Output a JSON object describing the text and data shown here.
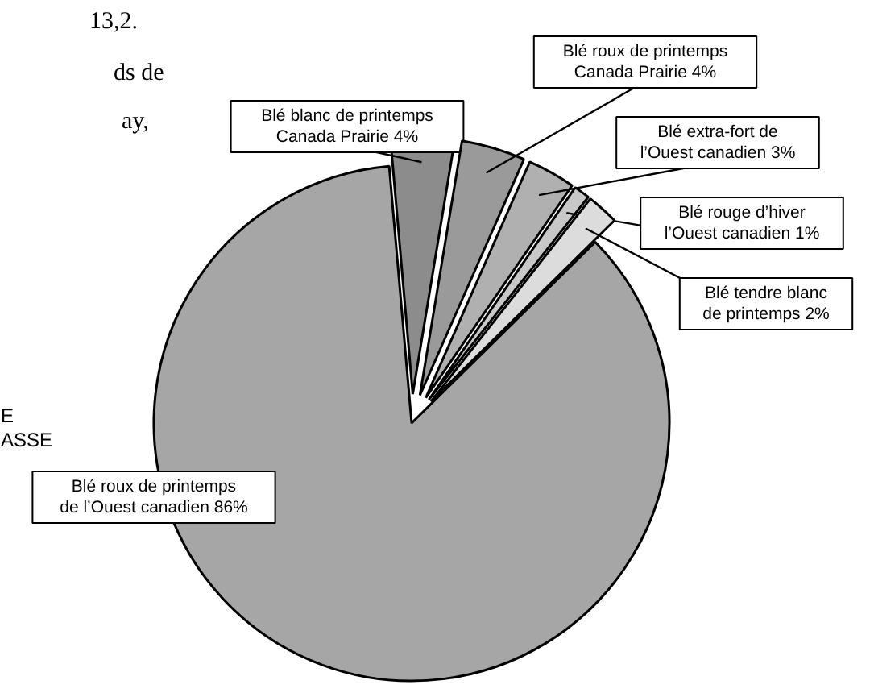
{
  "chart_data": {
    "type": "pie",
    "categories": [
      "Blé blanc de printemps\nCanada Prairie 4%",
      "Blé roux de printemps\nCanada Prairie 4%",
      "Blé extra-fort de\nl’Ouest canadien 3%",
      "Blé rouge d’hiver\nl’Ouest canadien 1%",
      "Blé tendre blanc\nde printemps 2%",
      "Blé roux de printemps\nde l’Ouest canadien 86%"
    ],
    "values": [
      4,
      4,
      3,
      1,
      2,
      86
    ],
    "colors": [
      "#8c8c8c",
      "#9a9a9a",
      "#b0b0b0",
      "#c8c8c8",
      "#dcdcdc",
      "#a6a6a6"
    ],
    "annotations": [
      "13,2.",
      "ds de",
      "ay,",
      "E\nASSE"
    ]
  }
}
